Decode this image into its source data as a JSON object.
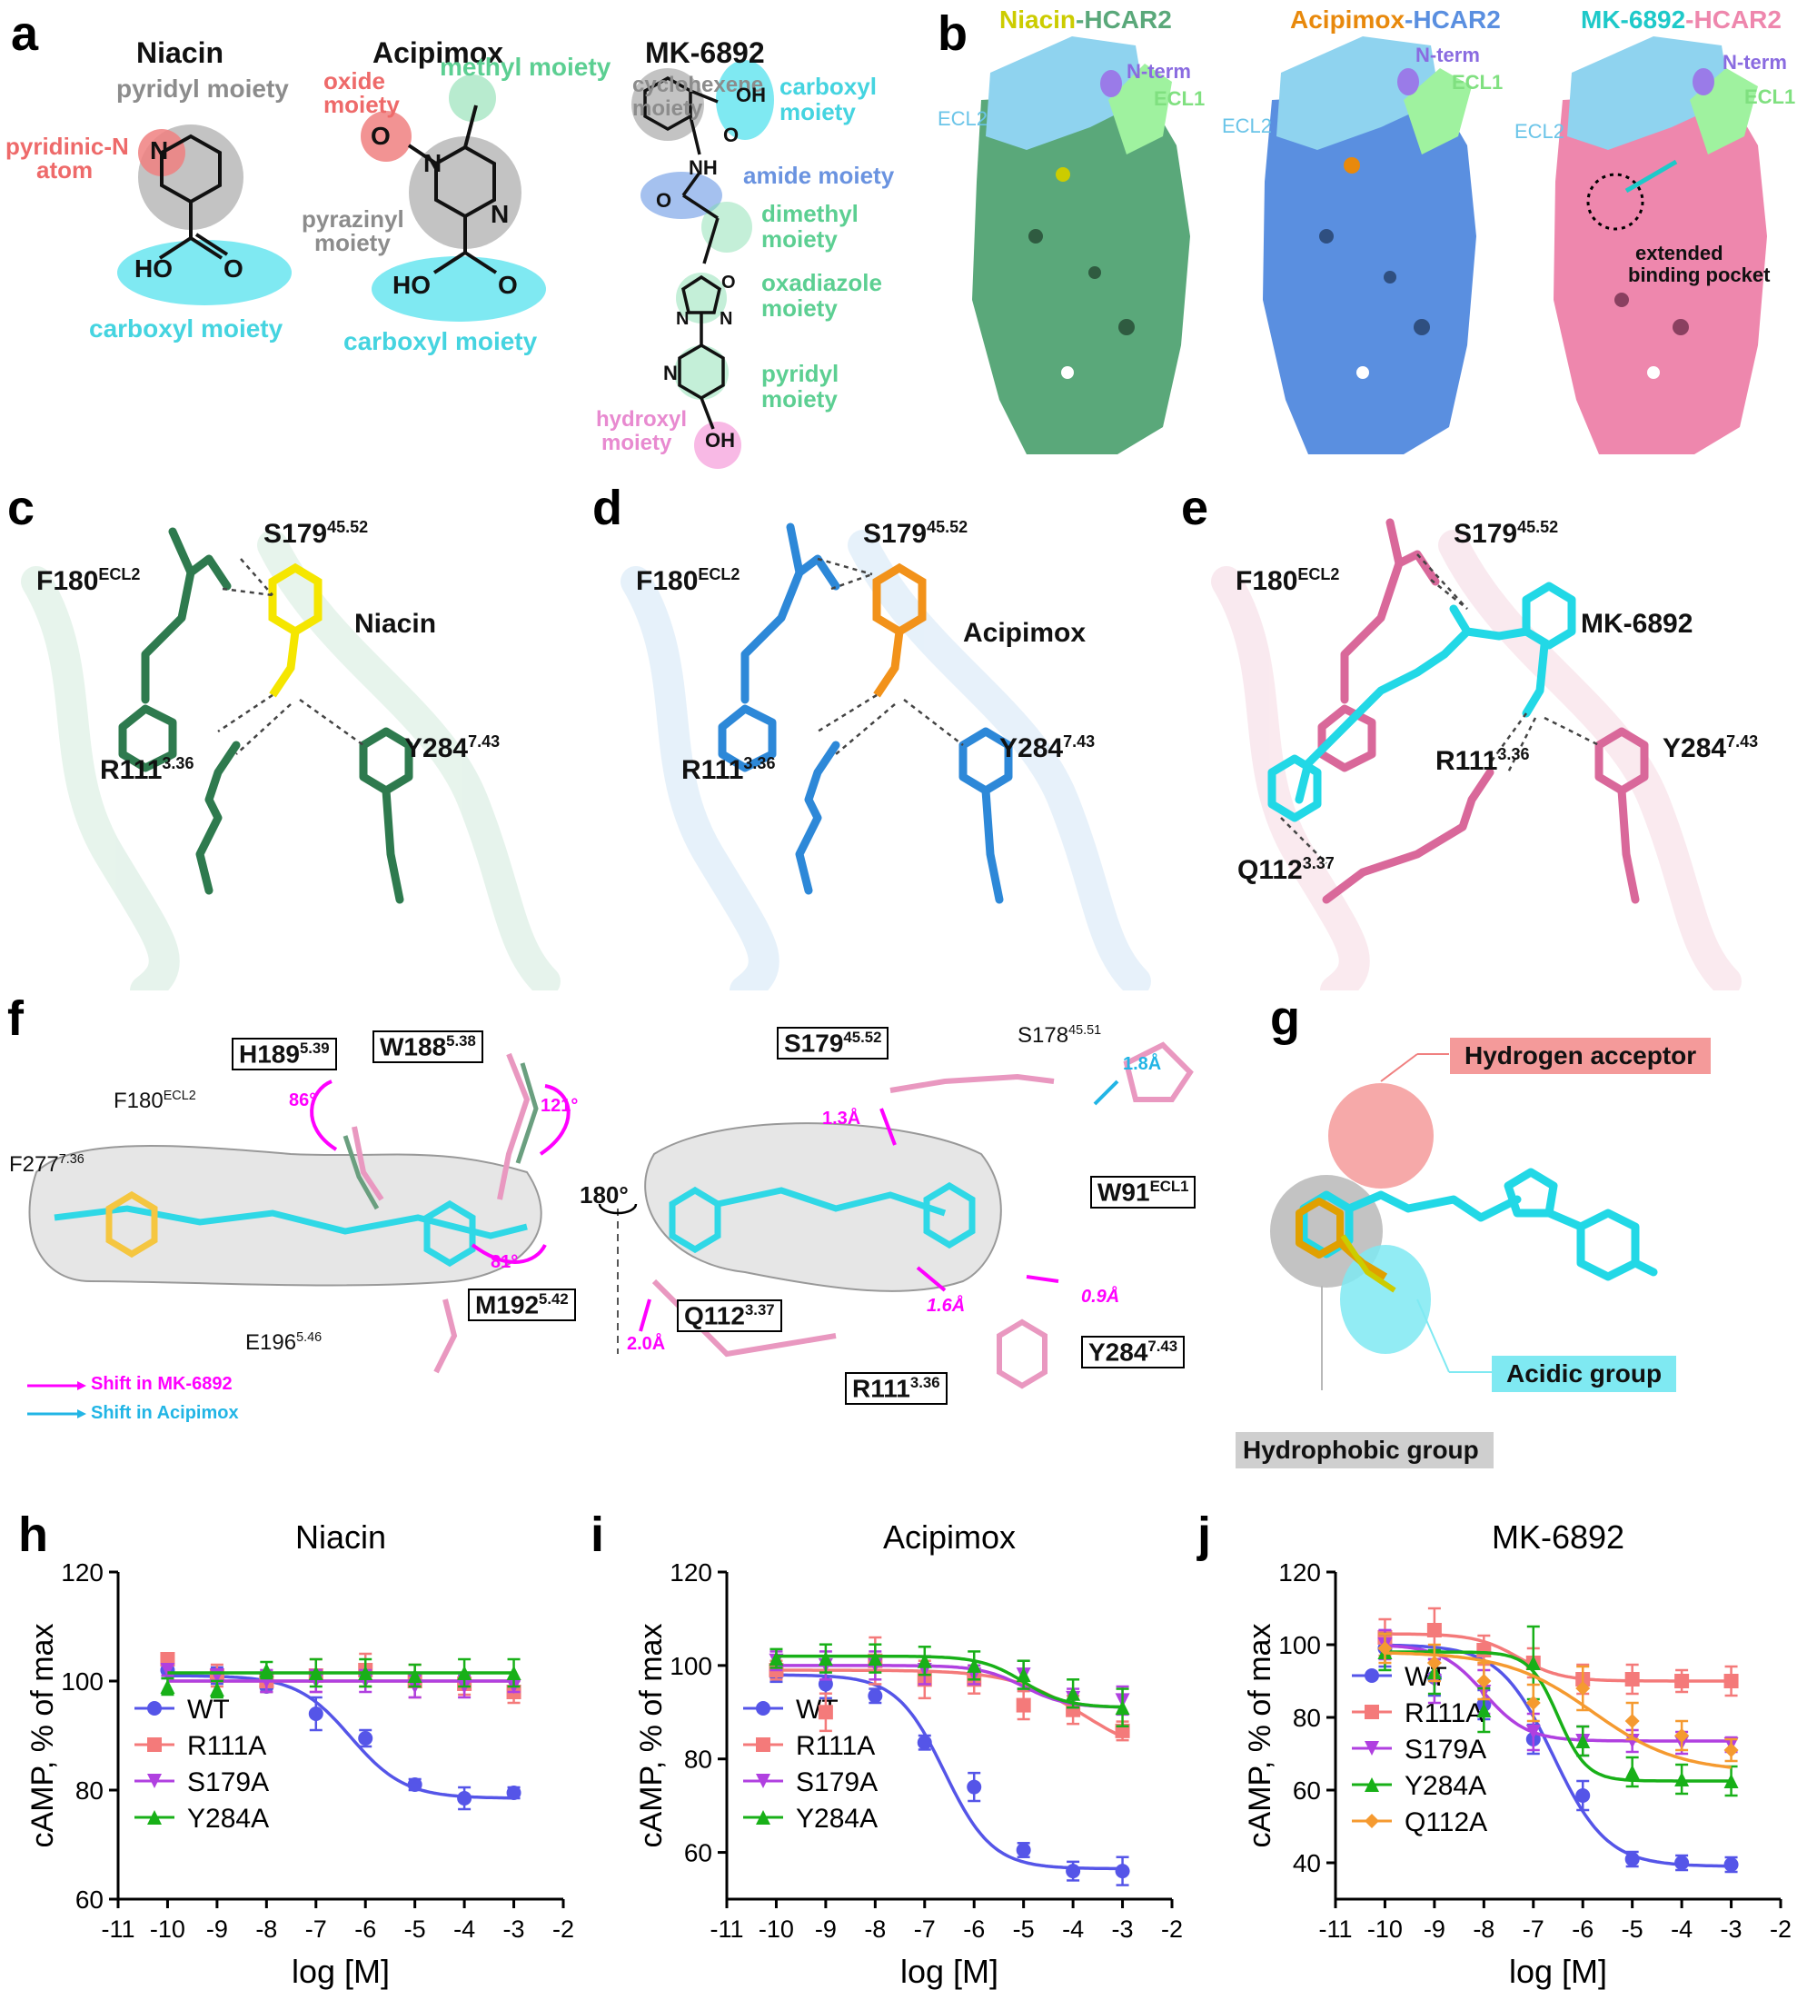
{
  "panels": {
    "a": "a",
    "b": "b",
    "c": "c",
    "d": "d",
    "e": "e",
    "f": "f",
    "g": "g",
    "h": "h",
    "i": "i",
    "j": "j"
  },
  "colors": {
    "gray": "#8c8c8c",
    "cyan": "#7fe9f2",
    "red": "#f08080",
    "green": "#7ddba8",
    "blue": "#7fa7e8",
    "pink": "#f27fd0",
    "niacin": "#cccc00",
    "acipimox": "#e8890c",
    "mk": "#1ec9c9",
    "hcar2_green": "#5aa87a",
    "hcar2_blue": "#5a8fe0",
    "hcar2_pink": "#ee87ad",
    "ecl2": "#8fd3ef",
    "ecl1": "#9ff29f",
    "nterm": "#9a7be8",
    "magenta": "#ff00ff",
    "arrow_cyan": "#22b5e5",
    "wt": "#5555e8",
    "r111a": "#f47a7a",
    "s179a": "#b040e0",
    "y284a": "#18b018",
    "q112a": "#f59a30"
  },
  "panel_a": {
    "niacin": {
      "title": "Niacin",
      "pyridyl": "pyridyl moiety",
      "pyridinic_line1": "pyridinic-N",
      "pyridinic_line2": "atom",
      "carboxyl": "carboxyl moiety",
      "atom_n": "N",
      "atom_ho": "HO",
      "atom_o": "O"
    },
    "acipimox": {
      "title": "Acipimox",
      "oxide_line1": "oxide",
      "oxide_line2": "moiety",
      "methyl": "methyl moiety",
      "pyrazinyl_line1": "pyrazinyl",
      "pyrazinyl_line2": "moiety",
      "carboxyl": "carboxyl moiety",
      "atom_o": "O",
      "atom_n_plus": "N",
      "atom_n": "N",
      "atom_ho": "HO",
      "atom_o2": "O"
    },
    "mk": {
      "title": "MK-6892",
      "cyclohexene_line1": "cyclohexene",
      "cyclohexene_line2": "moiety",
      "carboxyl_line1": "carboxyl",
      "carboxyl_line2": "moiety",
      "amide": "amide moiety",
      "dimethyl_line1": "dimethyl",
      "dimethyl_line2": "moiety",
      "oxadiazole_line1": "oxadiazole",
      "oxadiazole_line2": "moiety",
      "pyridyl_line1": "pyridyl",
      "pyridyl_line2": "moiety",
      "hydroxyl_line1": "hydroxyl",
      "hydroxyl_line2": "moiety",
      "atom_oh": "OH",
      "atom_o": "O",
      "atom_nh": "NH",
      "atom_o2": "O",
      "atom_n": "N",
      "atom_o3": "O",
      "atom_n2": "N",
      "atom_n3": "N",
      "atom_oh2": "OH"
    }
  },
  "panel_b": {
    "titles": [
      {
        "ligand": "Niacin",
        "receptor": "HCAR2"
      },
      {
        "ligand": "Acipimox",
        "receptor": "HCAR2"
      },
      {
        "ligand": "MK-6892",
        "receptor": "HCAR2"
      }
    ],
    "nterm": "N-term",
    "ecl1": "ECL1",
    "ecl2": "ECL2",
    "extended_line1": "extended",
    "extended_line2": "binding pocket"
  },
  "panel_cde": {
    "s179": "S179",
    "s179_sup": "45.52",
    "f180": "F180",
    "f180_sup": "ECL2",
    "r111": "R111",
    "r111_sup": "3.36",
    "y284": "Y284",
    "y284_sup": "7.43",
    "q112": "Q112",
    "q112_sup": "3.37",
    "ligand_c": "Niacin",
    "ligand_d": "Acipimox",
    "ligand_e": "MK-6892"
  },
  "panel_f": {
    "h189": "H189",
    "h189_sup": "5.39",
    "w188": "W188",
    "w188_sup": "5.38",
    "f180": "F180",
    "f180_sup": "ECL2",
    "f277": "F277",
    "f277_sup": "7.36",
    "m192": "M192",
    "m192_sup": "5.42",
    "e196": "E196",
    "e196_sup": "5.46",
    "angle_86": "86°",
    "angle_121": "121°",
    "angle_81": "81°",
    "rotation": "180°",
    "s179": "S179",
    "s179_sup": "45.52",
    "s178": "S178",
    "s178_sup": "45.51",
    "w91": "W91",
    "w91_sup": "ECL1",
    "q112": "Q112",
    "q112_sup": "3.37",
    "r111": "R111",
    "r111_sup": "3.36",
    "y284": "Y284",
    "y284_sup": "7.43",
    "d13": "1.3Å",
    "d18": "1.8Å",
    "d16": "1.6Å",
    "d09": "0.9Å",
    "d20": "2.0Å",
    "legend_mk": "Shift in MK-6892",
    "legend_aci": "Shift in Acipimox"
  },
  "panel_g": {
    "acceptor": "Hydrogen acceptor",
    "acidic": "Acidic group",
    "hydrophobic": "Hydrophobic group"
  },
  "charts_common": {
    "ylabel": "cAMP, % of max",
    "xlabel": "log  [M]",
    "xticks": [
      "-11",
      "-10",
      "-9",
      "-8",
      "-7",
      "-6",
      "-5",
      "-4",
      "-3",
      "-2"
    ]
  },
  "chart_data": [
    {
      "type": "line",
      "title": "Niacin",
      "xlabel": "log  [M]",
      "ylabel": "cAMP, % of max",
      "xlim": [
        -11,
        -2
      ],
      "ylim": [
        60,
        120
      ],
      "yticks": [
        60,
        80,
        100,
        120
      ],
      "x": [
        -10,
        -9,
        -8,
        -7,
        -6,
        -5,
        -4,
        -3
      ],
      "legend": "bottom-left",
      "series": [
        {
          "name": "WT",
          "color": "#5555e8",
          "marker": "circle",
          "values": [
            102,
            101,
            99,
            94,
            89.5,
            81,
            78.5,
            79.5
          ],
          "errors": [
            1.5,
            1.5,
            1,
            3,
            1.5,
            1,
            2,
            1
          ],
          "fit": {
            "top": 101,
            "bottom": 78.5,
            "logec50": -6.3,
            "hill": 0.8
          }
        },
        {
          "name": "R111A",
          "color": "#f47a7a",
          "marker": "square",
          "values": [
            104,
            101,
            100,
            101,
            102,
            100,
            99.5,
            98
          ],
          "errors": [
            1,
            2,
            2,
            3,
            3,
            3,
            2,
            2
          ],
          "fit": {
            "flat": 100
          }
        },
        {
          "name": "S179A",
          "color": "#b040e0",
          "marker": "triangle-down",
          "values": [
            102,
            101,
            100,
            100,
            100,
            99,
            99,
            99
          ],
          "errors": [
            1,
            1,
            2,
            2,
            2,
            2,
            2,
            1
          ],
          "fit": {
            "flat": 100
          }
        },
        {
          "name": "Y284A",
          "color": "#18b018",
          "marker": "triangle-up",
          "values": [
            99,
            98.5,
            102,
            101.5,
            101.5,
            101,
            101.5,
            101.5
          ],
          "errors": [
            1.5,
            1.5,
            1.5,
            2.5,
            2.5,
            2,
            2.5,
            2.5
          ],
          "fit": {
            "flat": 101.5
          }
        }
      ]
    },
    {
      "type": "line",
      "title": "Acipimox",
      "xlabel": "log  [M]",
      "ylabel": "cAMP, % of max",
      "xlim": [
        -11,
        -2
      ],
      "ylim": [
        50,
        120
      ],
      "yticks": [
        60,
        80,
        100,
        120
      ],
      "x": [
        -10,
        -9,
        -8,
        -7,
        -6,
        -5,
        -4,
        -3
      ],
      "legend": "bottom-left",
      "series": [
        {
          "name": "WT",
          "color": "#5555e8",
          "marker": "circle",
          "values": [
            98,
            96,
            93.5,
            83.5,
            74,
            60.5,
            56,
            56
          ],
          "errors": [
            1.5,
            3,
            1.5,
            1.5,
            3,
            1.5,
            2,
            3
          ],
          "fit": {
            "top": 98,
            "bottom": 56.5,
            "logec50": -6.6,
            "hill": 0.9
          }
        },
        {
          "name": "R111A",
          "color": "#f47a7a",
          "marker": "square",
          "values": [
            99,
            90,
            101,
            97,
            97,
            91.5,
            90.5,
            86
          ],
          "errors": [
            2,
            4,
            5,
            4,
            3,
            3,
            3,
            2
          ],
          "fit": {
            "top": 99,
            "bottom": 80,
            "logec50": -3.8,
            "hill": 0.6
          }
        },
        {
          "name": "S179A",
          "color": "#b040e0",
          "marker": "triangle-down",
          "values": [
            101,
            100,
            100,
            99,
            98,
            98,
            93,
            92.5
          ],
          "errors": [
            2,
            3,
            3,
            3,
            2,
            3,
            2,
            3
          ],
          "fit": {
            "top": 100,
            "bottom": 91,
            "logec50": -5,
            "hill": 1
          }
        },
        {
          "name": "Y284A",
          "color": "#18b018",
          "marker": "triangle-up",
          "values": [
            101.5,
            101.5,
            101.5,
            101,
            100,
            98,
            94,
            91
          ],
          "errors": [
            2,
            3,
            3,
            3,
            3,
            3,
            3,
            4
          ],
          "fit": {
            "top": 102,
            "bottom": 91,
            "logec50": -5,
            "hill": 1
          }
        }
      ]
    },
    {
      "type": "line",
      "title": "MK-6892",
      "xlabel": "log  [M]",
      "ylabel": "cAMP, % of max",
      "xlim": [
        -11,
        -2
      ],
      "ylim": [
        30,
        120
      ],
      "yticks": [
        40,
        60,
        80,
        100,
        120
      ],
      "x": [
        -10,
        -9,
        -8,
        -7,
        -6,
        -5,
        -4,
        -3
      ],
      "legend": "bottom-left",
      "series": [
        {
          "name": "WT",
          "color": "#5555e8",
          "marker": "circle",
          "values": [
            99,
            91,
            83.5,
            74,
            58.5,
            41,
            40,
            39.5
          ],
          "errors": [
            5,
            5,
            4,
            4,
            4,
            2,
            2,
            2
          ],
          "fit": {
            "top": 100,
            "bottom": 39,
            "logec50": -6.6,
            "hill": 0.8
          }
        },
        {
          "name": "R111A",
          "color": "#f47a7a",
          "marker": "square",
          "values": [
            102,
            104,
            98.5,
            95,
            90.5,
            90.5,
            90,
            90
          ],
          "errors": [
            5,
            6,
            4,
            4,
            4,
            4,
            3,
            4
          ],
          "fit": {
            "top": 103,
            "bottom": 90,
            "logec50": -7.3,
            "hill": 1
          }
        },
        {
          "name": "S179A",
          "color": "#b040e0",
          "marker": "triangle-down",
          "values": [
            100,
            90,
            87,
            76,
            73.5,
            73.5,
            73,
            72.5
          ],
          "errors": [
            4,
            6,
            6,
            5,
            4,
            3,
            3,
            2
          ],
          "fit": {
            "top": 100,
            "bottom": 73.5,
            "logec50": -8,
            "hill": 1
          }
        },
        {
          "name": "Y284A",
          "color": "#18b018",
          "marker": "triangle-up",
          "values": [
            98,
            92.5,
            82,
            95,
            73.5,
            65,
            63,
            62.5
          ],
          "errors": [
            5,
            6,
            6,
            10,
            4,
            4,
            4,
            4
          ],
          "fit": {
            "top": 98,
            "bottom": 62.5,
            "logec50": -6.5,
            "hill": 1.5
          }
        },
        {
          "name": "Q112A",
          "color": "#f59a30",
          "marker": "diamond",
          "values": [
            99,
            95,
            90,
            84,
            88,
            79,
            75,
            71
          ],
          "errors": [
            4,
            5,
            5,
            5,
            6,
            5,
            4,
            3
          ],
          "fit": {
            "top": 98,
            "bottom": 65,
            "logec50": -5.8,
            "hill": 0.5
          }
        }
      ]
    }
  ]
}
